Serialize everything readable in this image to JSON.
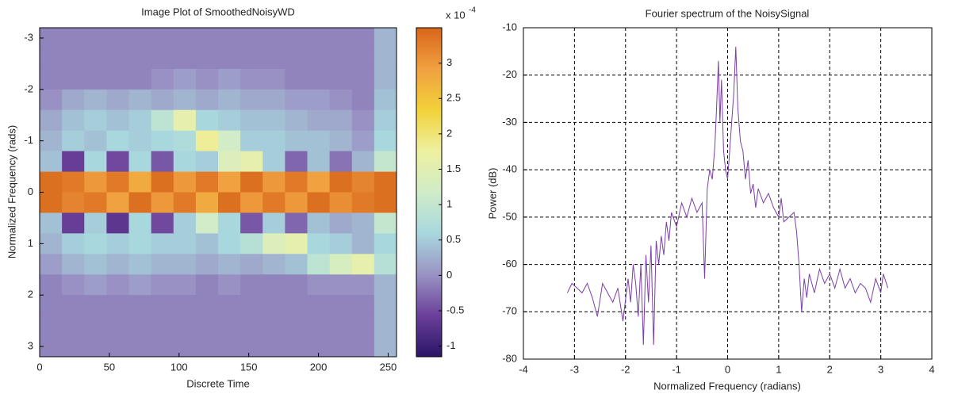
{
  "chart_data": [
    {
      "type": "heatmap",
      "title": "Image Plot of SmoothedNoisyWD",
      "xlabel": "Discrete Time",
      "ylabel": "Normalized Frequency (rads)",
      "xlim": [
        0,
        256
      ],
      "xticks": [
        0,
        50,
        100,
        150,
        200,
        250
      ],
      "ylim": [
        -3.2,
        3.2
      ],
      "yticks": [
        -3,
        -2,
        -1,
        0,
        1,
        2,
        3
      ],
      "y_reversed": true,
      "xbins": [
        0,
        16,
        32,
        48,
        64,
        80,
        96,
        112,
        128,
        144,
        160,
        176,
        192,
        208,
        224,
        240,
        256
      ],
      "ybins": [
        -3.2,
        -2.8,
        -2.4,
        -2.0,
        -1.6,
        -1.2,
        -0.8,
        -0.4,
        0,
        0.4,
        0.8,
        1.2,
        1.6,
        2.0,
        2.4,
        2.8,
        3.2
      ],
      "z": [
        [
          -0.1,
          -0.1,
          -0.1,
          -0.1,
          -0.1,
          -0.1,
          -0.1,
          -0.1,
          -0.1,
          -0.1,
          -0.1,
          -0.1,
          -0.1,
          -0.1,
          -0.1,
          0.3
        ],
        [
          -0.1,
          -0.1,
          -0.1,
          -0.1,
          -0.1,
          -0.1,
          -0.1,
          -0.1,
          -0.1,
          -0.1,
          -0.1,
          -0.1,
          -0.1,
          -0.1,
          -0.1,
          0.3
        ],
        [
          -0.1,
          -0.1,
          -0.1,
          -0.1,
          -0.1,
          0.0,
          0.1,
          0.0,
          0.1,
          0.0,
          0.0,
          -0.1,
          -0.1,
          -0.1,
          -0.1,
          0.3
        ],
        [
          0.0,
          0.2,
          0.3,
          0.2,
          0.3,
          0.2,
          0.3,
          0.2,
          0.3,
          0.2,
          0.2,
          0.1,
          0.1,
          0.0,
          -0.1,
          0.4
        ],
        [
          0.2,
          0.4,
          0.5,
          0.4,
          0.5,
          0.9,
          1.6,
          0.6,
          0.5,
          0.4,
          0.4,
          0.3,
          0.2,
          0.2,
          0.0,
          0.5
        ],
        [
          0.3,
          0.5,
          0.4,
          0.6,
          0.5,
          0.6,
          0.7,
          1.8,
          1.2,
          0.5,
          0.5,
          0.4,
          0.4,
          0.3,
          0.1,
          0.6
        ],
        [
          0.4,
          -0.6,
          0.6,
          -0.5,
          0.6,
          -0.4,
          0.6,
          0.5,
          1.4,
          1.6,
          0.5,
          -0.3,
          0.4,
          -0.2,
          0.3,
          1.0
        ],
        [
          3.4,
          3.3,
          3.0,
          3.3,
          2.8,
          3.4,
          3.0,
          3.3,
          2.9,
          3.4,
          3.0,
          3.3,
          2.9,
          3.4,
          3.2,
          3.4
        ],
        [
          3.4,
          3.2,
          3.3,
          2.9,
          3.4,
          3.0,
          3.3,
          2.8,
          3.4,
          3.0,
          3.3,
          3.0,
          3.4,
          3.1,
          3.3,
          3.4
        ],
        [
          0.4,
          -0.6,
          0.5,
          -0.7,
          0.6,
          -0.5,
          0.5,
          1.2,
          0.6,
          -0.4,
          0.5,
          -0.3,
          0.4,
          0.2,
          0.3,
          1.0
        ],
        [
          0.3,
          0.5,
          0.6,
          0.5,
          0.6,
          0.5,
          0.5,
          0.4,
          0.6,
          0.8,
          1.4,
          1.6,
          0.6,
          0.5,
          0.3,
          0.6
        ],
        [
          0.1,
          0.3,
          0.4,
          0.3,
          0.4,
          0.3,
          0.3,
          0.2,
          0.3,
          0.2,
          0.3,
          0.4,
          0.9,
          1.3,
          1.6,
          0.8
        ],
        [
          -0.1,
          0.0,
          0.1,
          0.0,
          0.1,
          0.0,
          0.0,
          -0.1,
          0.0,
          -0.1,
          -0.1,
          -0.1,
          0.0,
          0.0,
          0.0,
          0.3
        ],
        [
          -0.1,
          -0.1,
          -0.1,
          -0.1,
          -0.1,
          -0.1,
          -0.1,
          -0.1,
          -0.1,
          -0.1,
          -0.1,
          -0.1,
          -0.1,
          -0.1,
          -0.1,
          0.3
        ],
        [
          -0.1,
          -0.1,
          -0.1,
          -0.1,
          -0.1,
          -0.1,
          -0.1,
          -0.1,
          -0.1,
          -0.1,
          -0.1,
          -0.1,
          -0.1,
          -0.1,
          -0.1,
          0.3
        ],
        [
          -0.1,
          -0.1,
          -0.1,
          -0.1,
          -0.1,
          -0.1,
          -0.1,
          -0.1,
          -0.1,
          -0.1,
          -0.1,
          -0.1,
          -0.1,
          -0.1,
          -0.1,
          0.3
        ]
      ],
      "clim": [
        -1.15,
        3.5
      ],
      "cticks": [
        -1,
        -0.5,
        0,
        0.5,
        1,
        1.5,
        2,
        2.5,
        3
      ],
      "colorbar_label": "x 10",
      "colorbar_exponent": "-4",
      "colormap": [
        "#2b1569",
        "#6a3f9a",
        "#9a93c4",
        "#a8d8de",
        "#d0ecc8",
        "#eef0a0",
        "#f2d23a",
        "#f0a040",
        "#d8661a"
      ]
    },
    {
      "type": "line",
      "title": "Fourier spectrum of the NoisySignal",
      "xlabel": "Normalized Frequency (radians)",
      "ylabel": "Power (dB)",
      "xlim": [
        -4,
        4
      ],
      "xticks": [
        -4,
        -3,
        -2,
        -1,
        0,
        1,
        2,
        3,
        4
      ],
      "ylim": [
        -80,
        -10
      ],
      "yticks": [
        -80,
        -70,
        -60,
        -50,
        -40,
        -30,
        -20,
        -10
      ],
      "grid": true,
      "color": "#7b3fa8",
      "x": [
        -3.14,
        -3.05,
        -2.95,
        -2.85,
        -2.75,
        -2.65,
        -2.55,
        -2.45,
        -2.35,
        -2.25,
        -2.15,
        -2.05,
        -1.95,
        -1.9,
        -1.85,
        -1.8,
        -1.75,
        -1.7,
        -1.65,
        -1.6,
        -1.55,
        -1.5,
        -1.45,
        -1.4,
        -1.35,
        -1.3,
        -1.25,
        -1.2,
        -1.15,
        -1.1,
        -1.0,
        -0.9,
        -0.8,
        -0.7,
        -0.6,
        -0.5,
        -0.45,
        -0.4,
        -0.35,
        -0.3,
        -0.25,
        -0.22,
        -0.18,
        -0.15,
        -0.12,
        -0.08,
        -0.04,
        0,
        0.04,
        0.08,
        0.12,
        0.16,
        0.2,
        0.25,
        0.3,
        0.35,
        0.4,
        0.45,
        0.5,
        0.55,
        0.6,
        0.7,
        0.8,
        0.9,
        1.0,
        1.05,
        1.1,
        1.2,
        1.3,
        1.35,
        1.4,
        1.45,
        1.5,
        1.55,
        1.6,
        1.7,
        1.8,
        1.9,
        2.0,
        2.1,
        2.2,
        2.3,
        2.4,
        2.5,
        2.6,
        2.7,
        2.8,
        2.9,
        3.0,
        3.05,
        3.14
      ],
      "values": [
        -66,
        -64,
        -65,
        -66,
        -64,
        -67,
        -71,
        -64,
        -66,
        -68,
        -65,
        -72,
        -63,
        -68,
        -60,
        -64,
        -71,
        -60,
        -77,
        -58,
        -68,
        -56,
        -77,
        -55,
        -60,
        -54,
        -58,
        -51,
        -55,
        -49,
        -52,
        -47,
        -50,
        -46,
        -49,
        -47,
        -63,
        -44,
        -40,
        -42,
        -35,
        -28,
        -17,
        -30,
        -21,
        -36,
        -40,
        -42,
        -36,
        -30,
        -24,
        -14,
        -27,
        -34,
        -36,
        -42,
        -38,
        -45,
        -43,
        -48,
        -44,
        -47,
        -45,
        -48,
        -50,
        -46,
        -51,
        -50,
        -49,
        -53,
        -60,
        -70,
        -63,
        -67,
        -62,
        -66,
        -61,
        -64,
        -62,
        -65,
        -61,
        -65,
        -63,
        -66,
        -64,
        -65,
        -68,
        -63,
        -66,
        -62,
        -65
      ]
    }
  ]
}
